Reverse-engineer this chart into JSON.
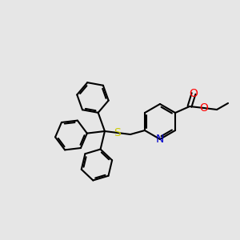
{
  "background_color": "#e6e6e6",
  "bond_color": "#000000",
  "bond_width": 1.5,
  "atom_colors": {
    "N": "#0000CC",
    "O": "#FF0000",
    "S": "#CCCC00",
    "C": "#000000"
  },
  "font_size": 9,
  "figsize": [
    3.0,
    3.0
  ],
  "dpi": 100
}
